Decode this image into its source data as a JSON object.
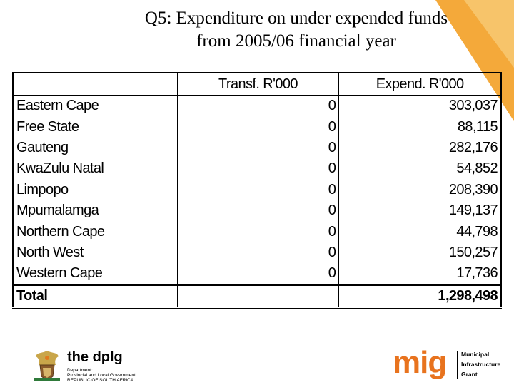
{
  "title": {
    "line1": "Q5: Expenditure on under expended funds",
    "line2": "from 2005/06 financial year"
  },
  "table": {
    "headers": [
      "",
      "Transf. R'000",
      "Expend. R'000"
    ],
    "rows": [
      {
        "name": "Eastern Cape",
        "transf": "0",
        "expend": "303,037"
      },
      {
        "name": "Free State",
        "transf": "0",
        "expend": "88,115"
      },
      {
        "name": "Gauteng",
        "transf": "0",
        "expend": "282,176"
      },
      {
        "name": "KwaZulu Natal",
        "transf": "0",
        "expend": "54,852"
      },
      {
        "name": "Limpopo",
        "transf": "0",
        "expend": "208,390"
      },
      {
        "name": "Mpumalamga",
        "transf": "0",
        "expend": "149,137"
      },
      {
        "name": "Northern Cape",
        "transf": "0",
        "expend": "44,798"
      },
      {
        "name": "North West",
        "transf": "0",
        "expend": "150,257"
      },
      {
        "name": "Western Cape",
        "transf": "0",
        "expend": "17,736"
      }
    ],
    "total": {
      "name": "Total",
      "transf": "",
      "expend": "1,298,498"
    }
  },
  "footer": {
    "dplg": {
      "brand_the": "the ",
      "brand_name": "dplg",
      "line1": "Department:",
      "line2": "Provincial and Local Government",
      "line3": "REPUBLIC OF SOUTH AFRICA"
    },
    "mig": {
      "word": "mig",
      "line1": "Municipal",
      "line2": "Infrastructure",
      "line3": "Grant"
    }
  },
  "colors": {
    "accent_orange": "#f0a030",
    "mig_orange": "#e8731e"
  }
}
